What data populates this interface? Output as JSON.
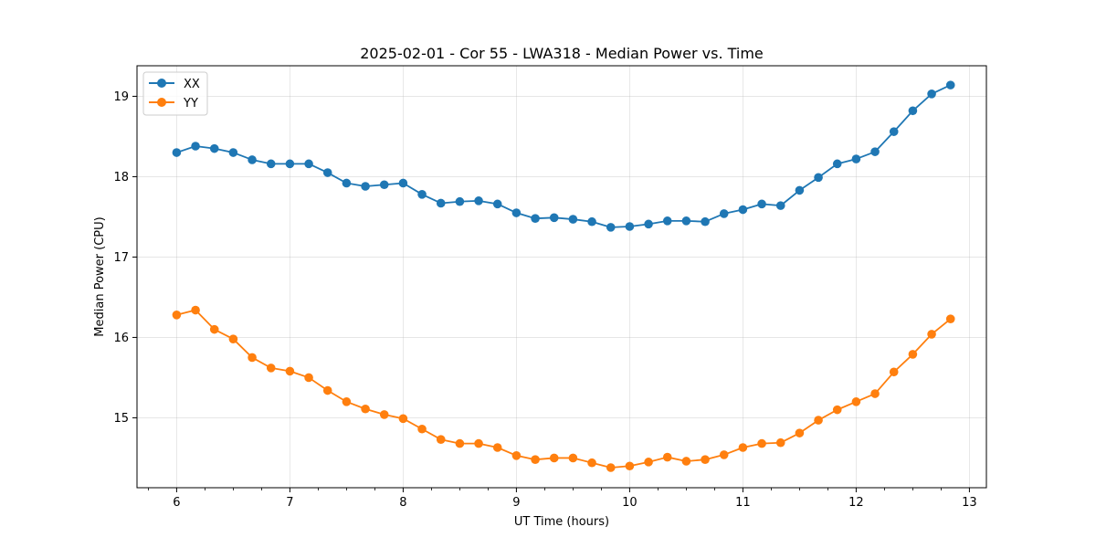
{
  "chart_data": {
    "type": "line",
    "title": "2025-02-01 - Cor 55 - LWA318 - Median Power vs. Time",
    "xlabel": "UT Time (hours)",
    "ylabel": "Median Power (CPU)",
    "xlim": [
      5.65,
      13.15
    ],
    "ylim": [
      14.13,
      19.38
    ],
    "xticks": [
      6,
      7,
      8,
      9,
      10,
      11,
      12,
      13
    ],
    "xticks_minor": [
      5.75,
      6.25,
      6.5,
      6.75,
      7.25,
      7.5,
      7.75,
      8.25,
      8.5,
      8.75,
      9.25,
      9.5,
      9.75,
      10.25,
      10.5,
      10.75,
      11.25,
      11.5,
      11.75,
      12.25,
      12.5,
      12.75
    ],
    "yticks": [
      15,
      16,
      17,
      18,
      19
    ],
    "grid": true,
    "legend_position": "top-left",
    "x": [
      6.0,
      6.1667,
      6.3333,
      6.5,
      6.6667,
      6.8333,
      7.0,
      7.1667,
      7.3333,
      7.5,
      7.6667,
      7.8333,
      8.0,
      8.1667,
      8.3333,
      8.5,
      8.6667,
      8.8333,
      9.0,
      9.1667,
      9.3333,
      9.5,
      9.6667,
      9.8333,
      10.0,
      10.1667,
      10.3333,
      10.5,
      10.6667,
      10.8333,
      11.0,
      11.1667,
      11.3333,
      11.5,
      11.6667,
      11.8333,
      12.0,
      12.1667,
      12.3333,
      12.5,
      12.6667,
      12.8333
    ],
    "series": [
      {
        "name": "XX",
        "color": "#1f77b4",
        "values": [
          18.3,
          18.38,
          18.35,
          18.3,
          18.21,
          18.16,
          18.16,
          18.16,
          18.05,
          17.92,
          17.88,
          17.9,
          17.92,
          17.78,
          17.67,
          17.69,
          17.7,
          17.66,
          17.55,
          17.48,
          17.49,
          17.47,
          17.44,
          17.37,
          17.38,
          17.41,
          17.45,
          17.45,
          17.44,
          17.54,
          17.59,
          17.66,
          17.64,
          17.83,
          17.99,
          18.16,
          18.22,
          18.31,
          18.56,
          18.82,
          19.03,
          19.14
        ]
      },
      {
        "name": "YY",
        "color": "#ff7f0e",
        "values": [
          16.28,
          16.34,
          16.1,
          15.98,
          15.75,
          15.62,
          15.58,
          15.5,
          15.34,
          15.2,
          15.11,
          15.04,
          14.99,
          14.86,
          14.73,
          14.68,
          14.68,
          14.63,
          14.53,
          14.48,
          14.5,
          14.5,
          14.44,
          14.38,
          14.4,
          14.45,
          14.51,
          14.46,
          14.48,
          14.54,
          14.63,
          14.68,
          14.69,
          14.81,
          14.97,
          15.1,
          15.2,
          15.3,
          15.57,
          15.79,
          16.04,
          16.23
        ]
      }
    ]
  }
}
